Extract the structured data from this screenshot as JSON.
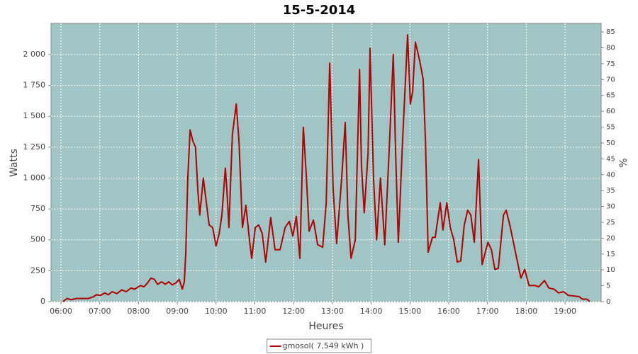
{
  "chart_data": {
    "type": "line",
    "title": "15-5-2014",
    "x_label": "Heures",
    "y_label": "Watts",
    "y2_label": "%",
    "x": [
      6.05,
      6.16,
      6.26,
      6.4,
      6.71,
      6.84,
      6.91,
      7.02,
      7.13,
      7.22,
      7.32,
      7.44,
      7.57,
      7.68,
      7.81,
      7.9,
      8.05,
      8.14,
      8.23,
      8.32,
      8.41,
      8.49,
      8.6,
      8.69,
      8.78,
      8.87,
      8.96,
      9.05,
      9.13,
      9.18,
      9.22,
      9.27,
      9.33,
      9.4,
      9.47,
      9.53,
      9.58,
      9.67,
      9.75,
      9.82,
      9.91,
      10.0,
      10.08,
      10.15,
      10.24,
      10.28,
      10.33,
      10.42,
      10.52,
      10.59,
      10.68,
      10.77,
      10.86,
      10.92,
      11.01,
      11.1,
      11.19,
      11.28,
      11.41,
      11.52,
      11.65,
      11.78,
      11.89,
      11.98,
      12.07,
      12.16,
      12.25,
      12.33,
      12.4,
      12.51,
      12.62,
      12.75,
      12.84,
      12.93,
      13.02,
      13.11,
      13.24,
      13.33,
      13.4,
      13.48,
      13.59,
      13.7,
      13.75,
      13.82,
      13.92,
      13.97,
      14.06,
      14.14,
      14.24,
      14.35,
      14.46,
      14.57,
      14.63,
      14.7,
      14.81,
      14.94,
      15.01,
      15.07,
      15.14,
      15.25,
      15.34,
      15.4,
      15.47,
      15.58,
      15.65,
      15.78,
      15.85,
      15.95,
      16.04,
      16.13,
      16.22,
      16.31,
      16.4,
      16.49,
      16.57,
      16.66,
      16.77,
      16.86,
      17.01,
      17.1,
      17.19,
      17.28,
      17.41,
      17.48,
      17.59,
      17.72,
      17.86,
      17.96,
      18.07,
      18.23,
      18.32,
      18.47,
      18.58,
      18.72,
      18.83,
      18.96,
      19.09,
      19.24,
      19.36,
      19.45,
      19.56,
      19.64
    ],
    "series": [
      {
        "name": "gmosol( 7,549 kWh )",
        "color": "#b00000",
        "values": [
          0,
          25,
          15,
          25,
          25,
          40,
          55,
          50,
          70,
          55,
          80,
          65,
          95,
          80,
          110,
          100,
          130,
          120,
          150,
          190,
          180,
          140,
          160,
          140,
          160,
          135,
          150,
          180,
          100,
          160,
          400,
          1000,
          1390,
          1300,
          1250,
          900,
          700,
          1000,
          800,
          620,
          600,
          450,
          550,
          700,
          1080,
          900,
          600,
          1350,
          1600,
          1300,
          600,
          780,
          500,
          350,
          600,
          620,
          550,
          320,
          680,
          420,
          420,
          600,
          650,
          530,
          690,
          350,
          1410,
          1000,
          570,
          660,
          460,
          440,
          800,
          1930,
          900,
          470,
          1000,
          1450,
          700,
          350,
          500,
          1880,
          1100,
          720,
          1200,
          2050,
          1000,
          500,
          1000,
          460,
          1200,
          2000,
          1200,
          480,
          1300,
          2160,
          1600,
          1700,
          2100,
          1950,
          1800,
          1300,
          400,
          520,
          520,
          800,
          580,
          800,
          600,
          500,
          320,
          330,
          620,
          740,
          700,
          480,
          1150,
          300,
          480,
          420,
          260,
          270,
          700,
          740,
          600,
          400,
          190,
          260,
          130,
          130,
          120,
          170,
          110,
          100,
          70,
          80,
          50,
          45,
          40,
          20,
          20,
          0
        ]
      }
    ],
    "xlim": [
      5.744,
      19.93
    ],
    "xticks": [
      {
        "value": 6,
        "label": "06:00"
      },
      {
        "value": 7,
        "label": "07:00"
      },
      {
        "value": 8,
        "label": "08:00"
      },
      {
        "value": 9,
        "label": "09:00"
      },
      {
        "value": 10,
        "label": "10:00"
      },
      {
        "value": 11,
        "label": "11:00"
      },
      {
        "value": 12,
        "label": "12:00"
      },
      {
        "value": 13,
        "label": "13:00"
      },
      {
        "value": 14,
        "label": "14:00"
      },
      {
        "value": 15,
        "label": "15:00"
      },
      {
        "value": 16,
        "label": "16:00"
      },
      {
        "value": 17,
        "label": "17:00"
      },
      {
        "value": 18,
        "label": "18:00"
      },
      {
        "value": 19,
        "label": "19:00"
      }
    ],
    "ylim": [
      0,
      2252
    ],
    "yticks": [
      0,
      250,
      500,
      750,
      {
        "value": 1000,
        "label": "1 000"
      },
      {
        "value": 1250,
        "label": "1 250"
      },
      {
        "value": 1500,
        "label": "1 500"
      },
      {
        "value": 1750,
        "label": "1 750"
      },
      {
        "value": 2000,
        "label": "2 000"
      }
    ],
    "y2lim": [
      0,
      87.7
    ],
    "y2ticks": [
      0,
      5,
      10,
      15,
      20,
      25,
      30,
      35,
      40,
      45,
      50,
      55,
      60,
      65,
      70,
      75,
      80,
      85
    ],
    "grid": true,
    "legend": "bottom",
    "background": "#a1c4c4"
  }
}
